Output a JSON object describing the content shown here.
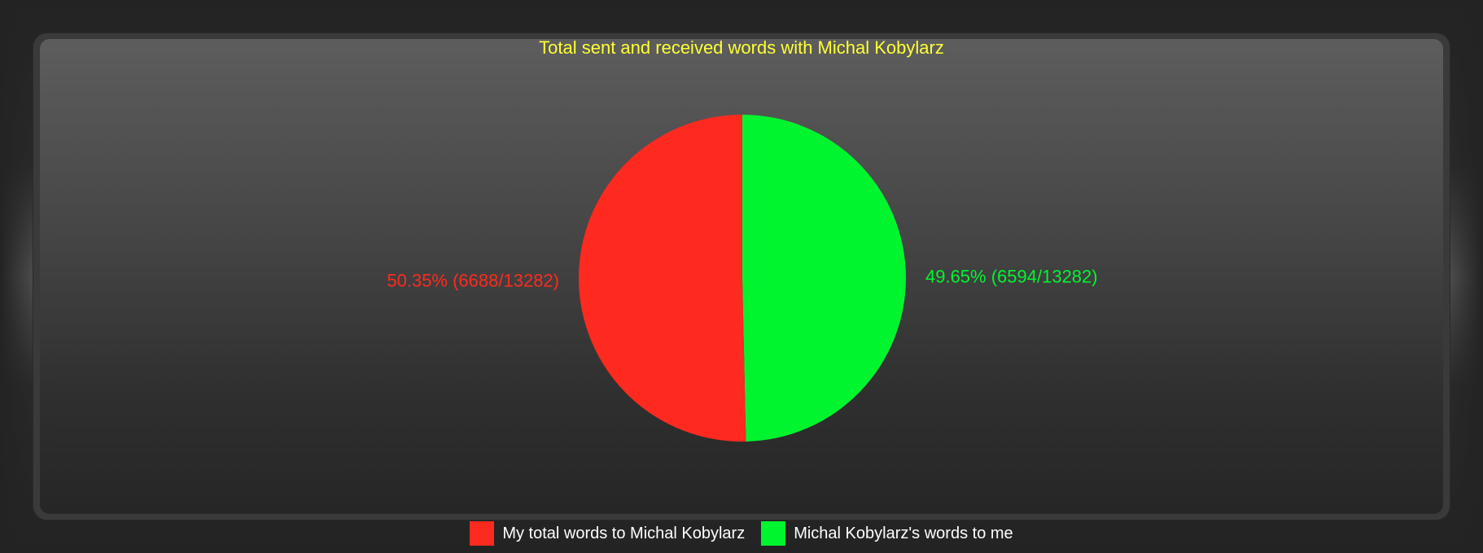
{
  "chart_data": {
    "type": "pie",
    "title": "Total sent and received words with Michal Kobylarz",
    "total": 13282,
    "slices": [
      {
        "name": "My total words to Michal Kobylarz",
        "value": 6688,
        "percent": 50.35,
        "label": "50.35% (6688/13282)",
        "color": "#ff2a1f"
      },
      {
        "name": "Michal Kobylarz's words to me",
        "value": 6594,
        "percent": 49.65,
        "label": "49.65% (6594/13282)",
        "color": "#00f52f"
      }
    ],
    "legend_placement": "bottom"
  },
  "colors": {
    "title": "#ffff33",
    "legend_text": "#ffffff",
    "background": "#232323"
  }
}
